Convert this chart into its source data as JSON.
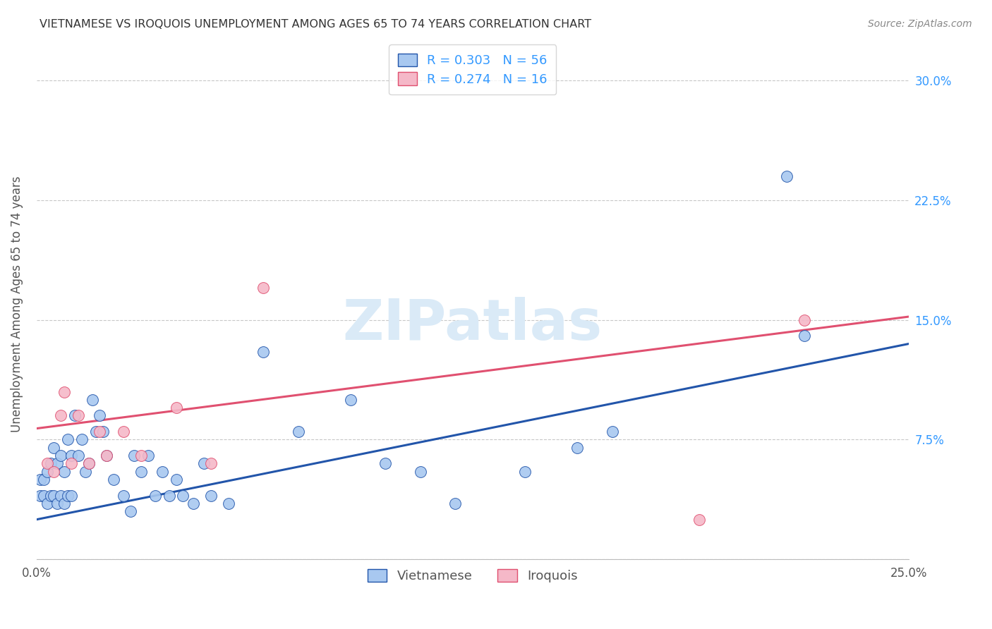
{
  "title": "VIETNAMESE VS IROQUOIS UNEMPLOYMENT AMONG AGES 65 TO 74 YEARS CORRELATION CHART",
  "source": "Source: ZipAtlas.com",
  "ylabel": "Unemployment Among Ages 65 to 74 years",
  "xlim": [
    0.0,
    0.25
  ],
  "ylim": [
    0.0,
    0.32
  ],
  "background_color": "#ffffff",
  "grid_color": "#c8c8c8",
  "watermark_text": "ZIPatlas",
  "watermark_color": "#daeaf7",
  "vietnamese_R": 0.303,
  "vietnamese_N": 56,
  "iroquois_R": 0.274,
  "iroquois_N": 16,
  "vietnamese_color": "#a8c8f0",
  "iroquois_color": "#f5b8c8",
  "vietnamese_line_color": "#2255aa",
  "iroquois_line_color": "#e05070",
  "legend_text_color": "#3399ff",
  "legend_N_color": "#003399",
  "vietnamese_x": [
    0.001,
    0.001,
    0.002,
    0.002,
    0.003,
    0.003,
    0.004,
    0.004,
    0.005,
    0.005,
    0.006,
    0.006,
    0.007,
    0.007,
    0.008,
    0.008,
    0.009,
    0.009,
    0.01,
    0.01,
    0.011,
    0.012,
    0.013,
    0.014,
    0.015,
    0.016,
    0.017,
    0.018,
    0.019,
    0.02,
    0.022,
    0.025,
    0.027,
    0.028,
    0.03,
    0.032,
    0.034,
    0.036,
    0.038,
    0.04,
    0.042,
    0.045,
    0.048,
    0.05,
    0.055,
    0.065,
    0.075,
    0.09,
    0.1,
    0.11,
    0.12,
    0.14,
    0.155,
    0.165,
    0.215,
    0.22
  ],
  "vietnamese_y": [
    0.04,
    0.05,
    0.04,
    0.05,
    0.035,
    0.055,
    0.04,
    0.06,
    0.04,
    0.07,
    0.035,
    0.06,
    0.04,
    0.065,
    0.035,
    0.055,
    0.04,
    0.075,
    0.04,
    0.065,
    0.09,
    0.065,
    0.075,
    0.055,
    0.06,
    0.1,
    0.08,
    0.09,
    0.08,
    0.065,
    0.05,
    0.04,
    0.03,
    0.065,
    0.055,
    0.065,
    0.04,
    0.055,
    0.04,
    0.05,
    0.04,
    0.035,
    0.06,
    0.04,
    0.035,
    0.13,
    0.08,
    0.1,
    0.06,
    0.055,
    0.035,
    0.055,
    0.07,
    0.08,
    0.24,
    0.14
  ],
  "iroquois_x": [
    0.003,
    0.005,
    0.007,
    0.008,
    0.01,
    0.012,
    0.015,
    0.018,
    0.02,
    0.025,
    0.03,
    0.04,
    0.05,
    0.065,
    0.19,
    0.22
  ],
  "iroquois_y": [
    0.06,
    0.055,
    0.09,
    0.105,
    0.06,
    0.09,
    0.06,
    0.08,
    0.065,
    0.08,
    0.065,
    0.095,
    0.06,
    0.17,
    0.025,
    0.15
  ],
  "viet_line_x0": 0.0,
  "viet_line_y0": 0.025,
  "viet_line_x1": 0.25,
  "viet_line_y1": 0.135,
  "iro_line_x0": 0.0,
  "iro_line_y0": 0.082,
  "iro_line_x1": 0.25,
  "iro_line_y1": 0.152
}
